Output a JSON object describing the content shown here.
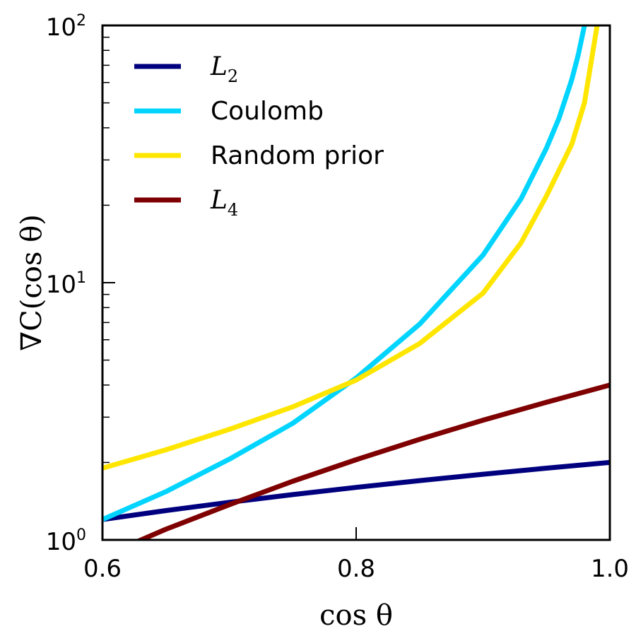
{
  "chart_data": {
    "type": "line",
    "xlabel": "cos θ",
    "ylabel": "∇C(cos θ)",
    "xlim": [
      0.6,
      1.0
    ],
    "ylim": [
      1,
      100
    ],
    "yscale": "log",
    "xticks": [
      "0.6",
      "0.8",
      "1.0"
    ],
    "yticks": [
      {
        "value": 1,
        "base": "10",
        "exp": "0"
      },
      {
        "value": 10,
        "base": "10",
        "exp": "1"
      },
      {
        "value": 100,
        "base": "10",
        "exp": "2"
      }
    ],
    "grid": false,
    "legend_position": "top-left",
    "series": [
      {
        "name": "L2",
        "label_main": "L",
        "label_sub": "2",
        "math": true,
        "color": "#00007f",
        "x": [
          0.6,
          0.65,
          0.7,
          0.75,
          0.8,
          0.85,
          0.9,
          0.95,
          1.0
        ],
        "y": [
          1.2,
          1.3,
          1.4,
          1.5,
          1.6,
          1.7,
          1.8,
          1.9,
          2.0
        ]
      },
      {
        "name": "Coulomb",
        "label_main": "Coulomb",
        "label_sub": "",
        "math": false,
        "color": "#00d4ff",
        "x": [
          0.6,
          0.65,
          0.7,
          0.75,
          0.8,
          0.85,
          0.9,
          0.93,
          0.95,
          0.96,
          0.97,
          0.975,
          0.98
        ],
        "y": [
          1.2,
          1.54,
          2.06,
          2.84,
          4.26,
          6.9,
          12.8,
          21.2,
          33.3,
          43.7,
          61.6,
          76.5,
          100
        ]
      },
      {
        "name": "Random prior",
        "label_main": "Random prior",
        "label_sub": "",
        "math": false,
        "color": "#ffe600",
        "x": [
          0.6,
          0.65,
          0.7,
          0.75,
          0.8,
          0.85,
          0.9,
          0.93,
          0.95,
          0.97,
          0.98,
          0.99
        ],
        "y": [
          1.9,
          2.24,
          2.69,
          3.29,
          4.18,
          5.8,
          9.1,
          14.3,
          21.7,
          34.5,
          50.1,
          100
        ]
      },
      {
        "name": "L4",
        "label_main": "L",
        "label_sub": "4",
        "math": true,
        "color": "#7f0000",
        "x": [
          0.62,
          0.65,
          0.7,
          0.75,
          0.8,
          0.85,
          0.9,
          0.95,
          1.0
        ],
        "y": [
          0.95,
          1.1,
          1.37,
          1.69,
          2.05,
          2.46,
          2.92,
          3.43,
          4.0
        ]
      }
    ]
  }
}
